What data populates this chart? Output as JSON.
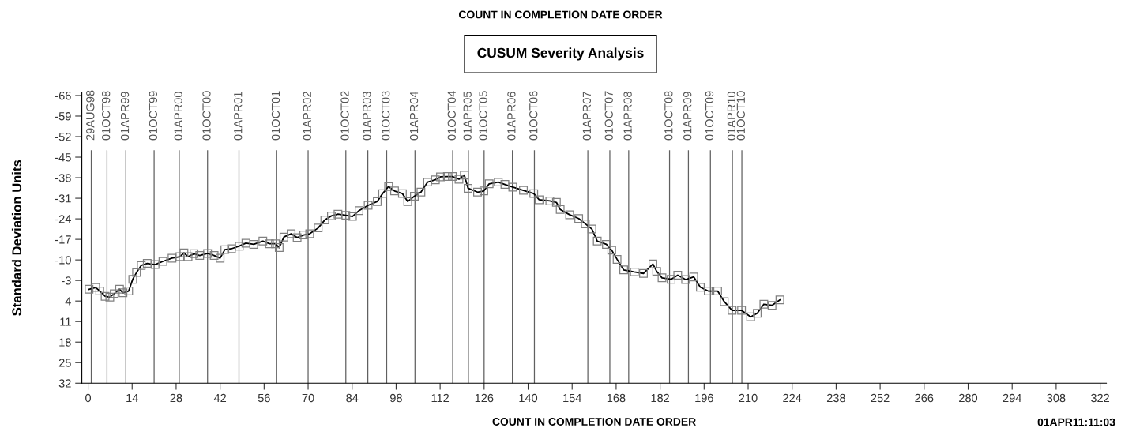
{
  "chart_data": {
    "type": "line",
    "title": "COUNT IN COMPLETION DATE ORDER",
    "subtitle": "CUSUM Severity Analysis",
    "xlabel": "COUNT IN COMPLETION DATE ORDER",
    "ylabel": "Standard Deviation Units",
    "annotations": [
      "01APR11:11:03"
    ],
    "xlim": [
      -2,
      324
    ],
    "xticks": [
      0,
      14,
      28,
      42,
      56,
      70,
      84,
      98,
      112,
      126,
      140,
      154,
      168,
      182,
      196,
      210,
      224,
      238,
      252,
      266,
      280,
      294,
      308,
      322
    ],
    "ylim": [
      32,
      -67
    ],
    "yticks": [
      -66,
      -59,
      -52,
      -45,
      -38,
      -31,
      -24,
      -17,
      -10,
      -3,
      4,
      11,
      18,
      25,
      32
    ],
    "grid": false,
    "legend": false,
    "marker": "square",
    "line_style": "solid",
    "series": [
      {
        "color": "#000000",
        "x": [
          0.3,
          2.4,
          3.7,
          5.4,
          6.9,
          8.3,
          10,
          11.1,
          12.9,
          14.2,
          15.4,
          16.9,
          18.8,
          21.3,
          23.8,
          26.7,
          29.2,
          30.5,
          31.8,
          33.7,
          35.5,
          38,
          40.1,
          42,
          43.5,
          45.6,
          48.1,
          50.2,
          52.7,
          55.6,
          57.7,
          59.6,
          60.8,
          62.3,
          64.6,
          66.5,
          68.6,
          70.5,
          73.2,
          75.3,
          77.4,
          79.5,
          82,
          84.1,
          86.2,
          89.1,
          92,
          93.7,
          95.6,
          97.5,
          100,
          101.7,
          103.8,
          105.9,
          108,
          110.5,
          112.1,
          114.3,
          115.9,
          118,
          119.7,
          120.9,
          123.9,
          125.9,
          127.6,
          130.5,
          132.6,
          135.1,
          138.5,
          141.8,
          143.5,
          146.9,
          149,
          150.2,
          153.2,
          156.1,
          158.2,
          160.3,
          162,
          164.9,
          166.6,
          168.3,
          170.4,
          173.8,
          176.7,
          179.7,
          180.9,
          182.6,
          185.5,
          187.6,
          190.1,
          192.7,
          194.8,
          197.3,
          200.3,
          202.4,
          204.9,
          207.9,
          210.8,
          212.9,
          215,
          217.6,
          220.1
        ],
        "values": [
          0.0,
          -0.6,
          0.6,
          2.4,
          2.7,
          1.5,
          0.0,
          1.2,
          0.6,
          -3.4,
          -5.7,
          -8.1,
          -8.8,
          -8.4,
          -9.5,
          -10.6,
          -11.1,
          -12.4,
          -11.1,
          -12.1,
          -11.5,
          -12.2,
          -11.5,
          -10.6,
          -13.5,
          -13.8,
          -14.7,
          -15.7,
          -15.3,
          -16.4,
          -15.5,
          -15.5,
          -14.2,
          -17.8,
          -18.9,
          -17.6,
          -18.5,
          -18.9,
          -20.9,
          -23.6,
          -25.0,
          -25.6,
          -25.2,
          -24.8,
          -26.8,
          -28.6,
          -29.9,
          -32.6,
          -35.0,
          -33.5,
          -32.6,
          -29.9,
          -31.7,
          -33.1,
          -36.5,
          -37.3,
          -38.3,
          -38.4,
          -38.4,
          -37.5,
          -38.9,
          -34.4,
          -33.1,
          -33.5,
          -35.9,
          -36.5,
          -35.7,
          -34.8,
          -33.7,
          -32.6,
          -30.5,
          -30.1,
          -29.6,
          -27.2,
          -25.4,
          -24.1,
          -22.3,
          -20.5,
          -16.4,
          -15.3,
          -13.3,
          -10.2,
          -6.6,
          -5.9,
          -5.4,
          -8.6,
          -6.1,
          -3.9,
          -3.4,
          -4.8,
          -3.3,
          -4.2,
          -0.7,
          0.6,
          0.6,
          4.2,
          7.2,
          7.2,
          9.4,
          8.2,
          5.1,
          5.5,
          3.6
        ]
      }
    ],
    "ref_lines": [
      {
        "axis": "x",
        "value": 1,
        "label": "29AUG98",
        "color": "#606060"
      },
      {
        "axis": "x",
        "value": 6,
        "label": "01OCT98",
        "color": "#606060"
      },
      {
        "axis": "x",
        "value": 12,
        "label": "01APR99",
        "color": "#606060"
      },
      {
        "axis": "x",
        "value": 21,
        "label": "01OCT99",
        "color": "#606060"
      },
      {
        "axis": "x",
        "value": 29,
        "label": "01APR00",
        "color": "#606060"
      },
      {
        "axis": "x",
        "value": 38,
        "label": "01OCT00",
        "color": "#606060"
      },
      {
        "axis": "x",
        "value": 48,
        "label": "01APR01",
        "color": "#606060"
      },
      {
        "axis": "x",
        "value": 60,
        "label": "01OCT01",
        "color": "#606060"
      },
      {
        "axis": "x",
        "value": 70,
        "label": "01APR02",
        "color": "#606060"
      },
      {
        "axis": "x",
        "value": 82,
        "label": "01OCT02",
        "color": "#606060"
      },
      {
        "axis": "x",
        "value": 89,
        "label": "01APR03",
        "color": "#606060"
      },
      {
        "axis": "x",
        "value": 95,
        "label": "01OCT03",
        "color": "#606060"
      },
      {
        "axis": "x",
        "value": 104,
        "label": "01APR04",
        "color": "#606060"
      },
      {
        "axis": "x",
        "value": 116,
        "label": "01OCT04",
        "color": "#606060"
      },
      {
        "axis": "x",
        "value": 121,
        "label": "01APR05",
        "color": "#606060"
      },
      {
        "axis": "x",
        "value": 126,
        "label": "01OCT05",
        "color": "#606060"
      },
      {
        "axis": "x",
        "value": 135,
        "label": "01APR06",
        "color": "#606060"
      },
      {
        "axis": "x",
        "value": 142,
        "label": "01OCT06",
        "color": "#606060"
      },
      {
        "axis": "x",
        "value": 159,
        "label": "01APR07",
        "color": "#606060"
      },
      {
        "axis": "x",
        "value": 166,
        "label": "01OCT07",
        "color": "#606060"
      },
      {
        "axis": "x",
        "value": 172,
        "label": "01APR08",
        "color": "#606060"
      },
      {
        "axis": "x",
        "value": 185,
        "label": "01OCT08",
        "color": "#606060"
      },
      {
        "axis": "x",
        "value": 191,
        "label": "01APR09",
        "color": "#606060"
      },
      {
        "axis": "x",
        "value": 198,
        "label": "01OCT09",
        "color": "#606060"
      },
      {
        "axis": "x",
        "value": 205,
        "label": "01APR10",
        "color": "#606060"
      },
      {
        "axis": "x",
        "value": 208,
        "label": "01OCT10",
        "color": "#606060"
      }
    ]
  }
}
